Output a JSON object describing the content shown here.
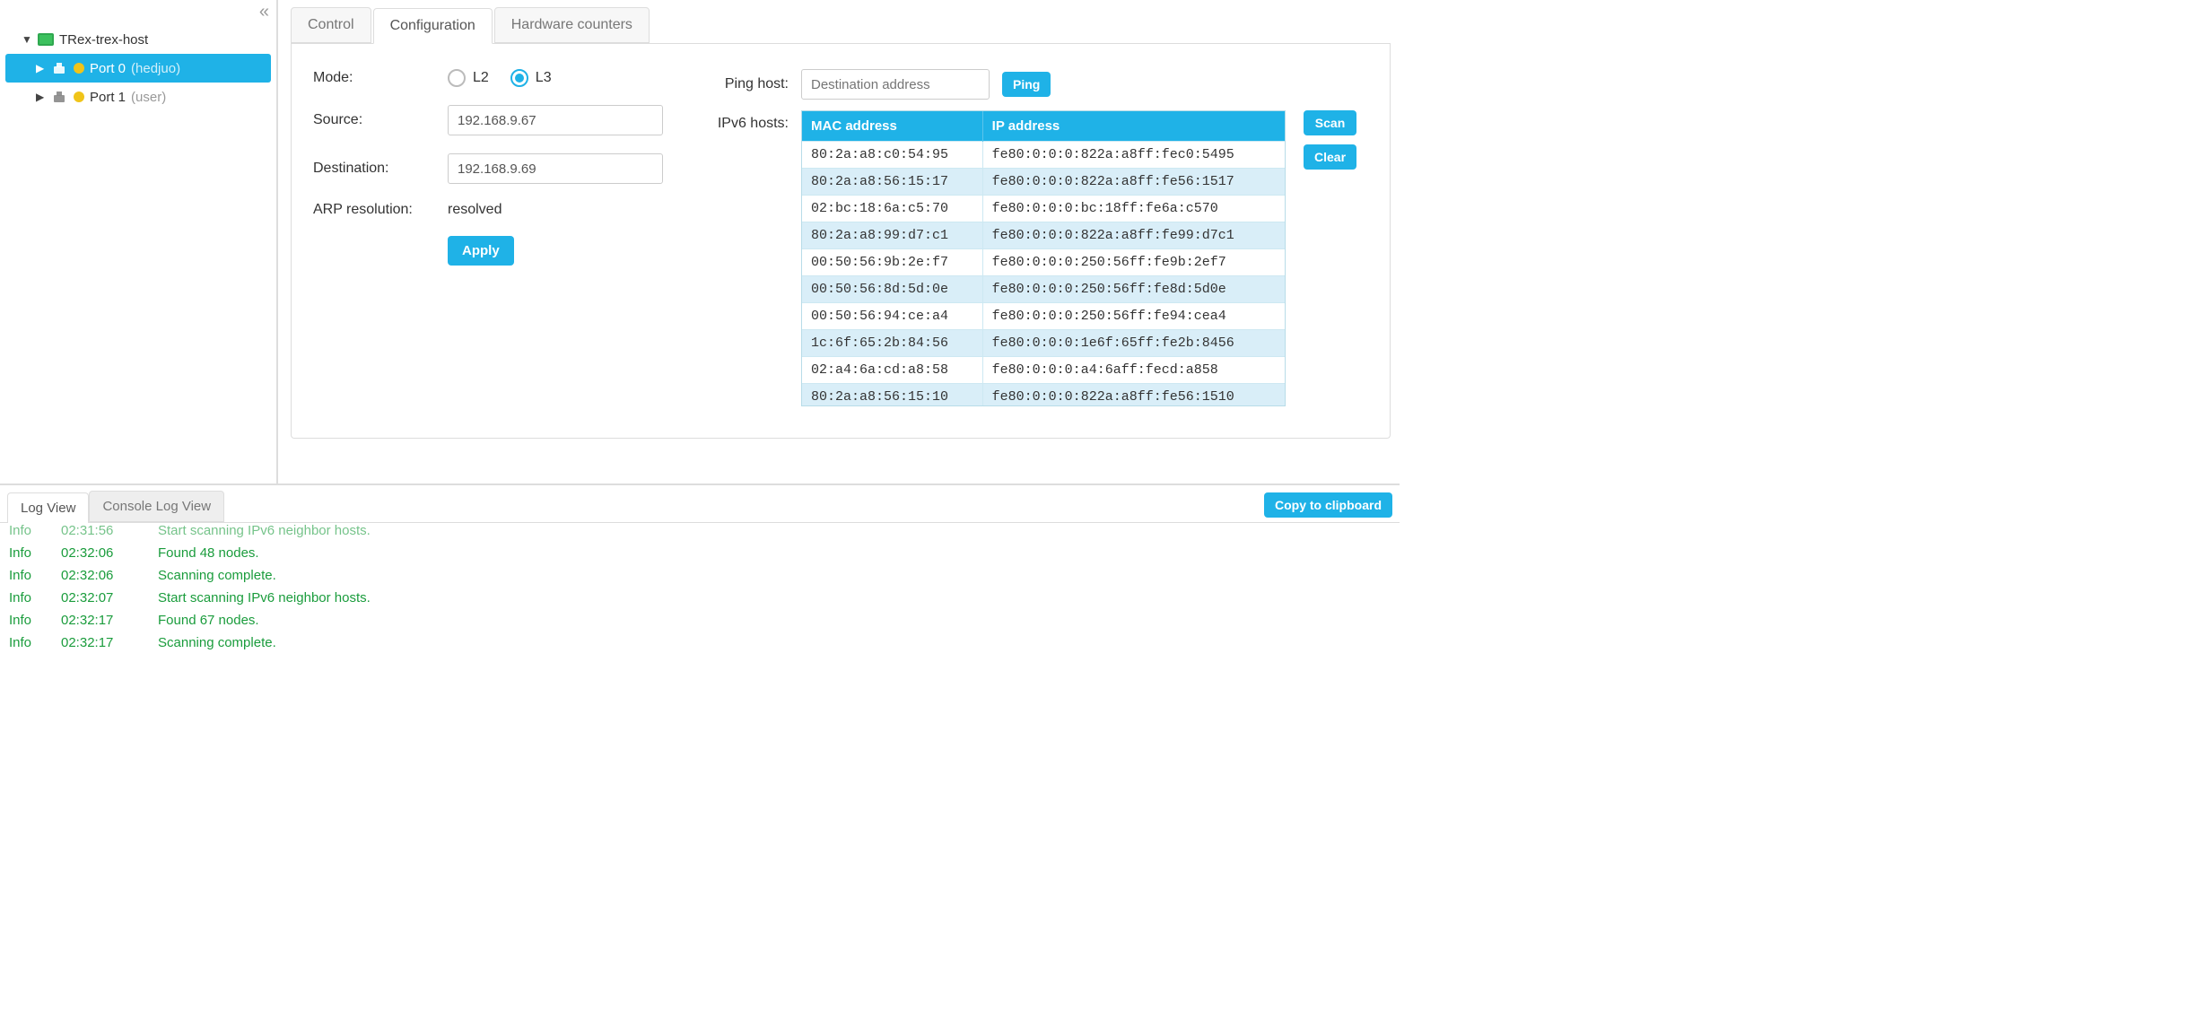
{
  "colors": {
    "accent": "#1fb2e7",
    "log_green": "#1a9c3c",
    "row_alt": "#d9eef8"
  },
  "sidebar": {
    "root": {
      "label": "TRex-trex-host"
    },
    "ports": [
      {
        "label": "Port 0",
        "owner": "(hedjuo)",
        "selected": true
      },
      {
        "label": "Port 1",
        "owner": "(user)",
        "selected": false
      }
    ]
  },
  "tabs": {
    "items": [
      "Control",
      "Configuration",
      "Hardware counters"
    ],
    "active": 1
  },
  "form": {
    "mode_label": "Mode:",
    "mode_options": {
      "l2": "L2",
      "l3": "L3",
      "selected": "L3"
    },
    "source_label": "Source:",
    "source_value": "192.168.9.67",
    "dest_label": "Destination:",
    "dest_value": "192.168.9.69",
    "arp_label": "ARP resolution:",
    "arp_value": "resolved",
    "apply": "Apply"
  },
  "ping": {
    "label": "Ping host:",
    "placeholder": "Destination address",
    "button": "Ping"
  },
  "ipv6": {
    "label": "IPv6 hosts:",
    "columns": [
      "MAC address",
      "IP address"
    ],
    "scan": "Scan",
    "clear": "Clear",
    "rows": [
      {
        "mac": "80:2a:a8:c0:54:95",
        "ip": "fe80:0:0:0:822a:a8ff:fec0:5495"
      },
      {
        "mac": "80:2a:a8:56:15:17",
        "ip": "fe80:0:0:0:822a:a8ff:fe56:1517"
      },
      {
        "mac": "02:bc:18:6a:c5:70",
        "ip": "fe80:0:0:0:bc:18ff:fe6a:c570"
      },
      {
        "mac": "80:2a:a8:99:d7:c1",
        "ip": "fe80:0:0:0:822a:a8ff:fe99:d7c1"
      },
      {
        "mac": "00:50:56:9b:2e:f7",
        "ip": "fe80:0:0:0:250:56ff:fe9b:2ef7"
      },
      {
        "mac": "00:50:56:8d:5d:0e",
        "ip": "fe80:0:0:0:250:56ff:fe8d:5d0e"
      },
      {
        "mac": "00:50:56:94:ce:a4",
        "ip": "fe80:0:0:0:250:56ff:fe94:cea4"
      },
      {
        "mac": "1c:6f:65:2b:84:56",
        "ip": "fe80:0:0:0:1e6f:65ff:fe2b:8456"
      },
      {
        "mac": "02:a4:6a:cd:a8:58",
        "ip": "fe80:0:0:0:a4:6aff:fecd:a858"
      },
      {
        "mac": "80:2a:a8:56:15:10",
        "ip": "fe80:0:0:0:822a:a8ff:fe56:1510"
      }
    ]
  },
  "log": {
    "tabs": [
      "Log View",
      "Console Log View"
    ],
    "active": 0,
    "copy": "Copy to clipboard",
    "lines": [
      {
        "level": "Info",
        "time": "02:31:56",
        "msg": "Start scanning IPv6 neighbor hosts.",
        "cut": true
      },
      {
        "level": "Info",
        "time": "02:32:06",
        "msg": "Found 48 nodes."
      },
      {
        "level": "Info",
        "time": "02:32:06",
        "msg": "Scanning complete."
      },
      {
        "level": "Info",
        "time": "02:32:07",
        "msg": "Start scanning IPv6 neighbor hosts."
      },
      {
        "level": "Info",
        "time": "02:32:17",
        "msg": "Found 67 nodes."
      },
      {
        "level": "Info",
        "time": "02:32:17",
        "msg": "Scanning complete."
      }
    ]
  }
}
